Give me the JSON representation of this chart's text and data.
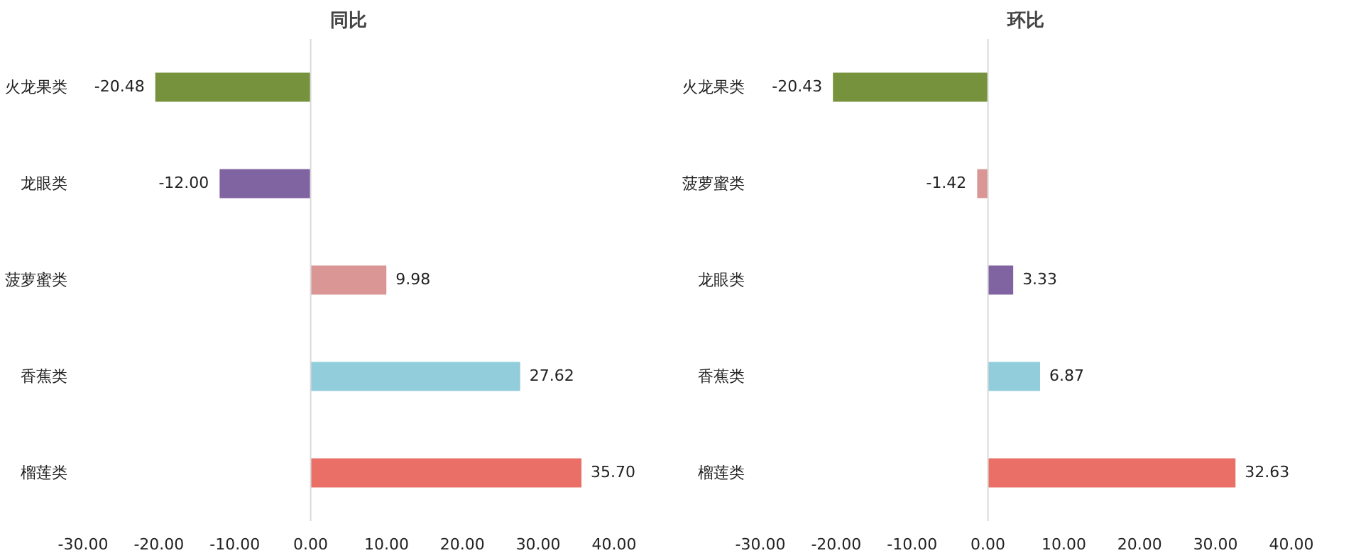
{
  "chart_data": [
    {
      "type": "bar",
      "orientation": "horizontal",
      "title": "同比",
      "categories": [
        "火龙果类",
        "龙眼类",
        "菠萝蜜类",
        "香蕉类",
        "榴莲类"
      ],
      "values": [
        -20.48,
        -12.0,
        9.98,
        27.62,
        35.7
      ],
      "colors": [
        "#76923c",
        "#8064a2",
        "#d99694",
        "#92cddc",
        "#e96f67"
      ],
      "value_labels": [
        "-20.48",
        "-12.00",
        "9.98",
        "27.62",
        "35.70"
      ],
      "grid": "x",
      "xlim": [
        -30,
        40
      ],
      "xticks": [
        {
          "value": -30,
          "label": "-30.00"
        },
        {
          "value": -20,
          "label": "-20.00"
        },
        {
          "value": -10,
          "label": "-10.00"
        },
        {
          "value": 0,
          "label": "0.00"
        },
        {
          "value": 10,
          "label": "10.00"
        },
        {
          "value": 20,
          "label": "20.00"
        },
        {
          "value": 30,
          "label": "30.00"
        },
        {
          "value": 40,
          "label": "40.00"
        }
      ]
    },
    {
      "type": "bar",
      "orientation": "horizontal",
      "title": "环比",
      "categories": [
        "火龙果类",
        "菠萝蜜类",
        "龙眼类",
        "香蕉类",
        "榴莲类"
      ],
      "values": [
        -20.43,
        -1.42,
        3.33,
        6.87,
        32.63
      ],
      "colors": [
        "#76923c",
        "#d99694",
        "#8064a2",
        "#92cddc",
        "#e96f67"
      ],
      "value_labels": [
        "-20.43",
        "-1.42",
        "3.33",
        "6.87",
        "32.63"
      ],
      "grid": "x",
      "xlim": [
        -30,
        40
      ],
      "xticks": [
        {
          "value": -30,
          "label": "-30.00"
        },
        {
          "value": -20,
          "label": "-20.00"
        },
        {
          "value": -10,
          "label": "-10.00"
        },
        {
          "value": 0,
          "label": "0.00"
        },
        {
          "value": 10,
          "label": "10.00"
        },
        {
          "value": 20,
          "label": "20.00"
        },
        {
          "value": 30,
          "label": "30.00"
        },
        {
          "value": 40,
          "label": "40.00"
        }
      ]
    }
  ]
}
